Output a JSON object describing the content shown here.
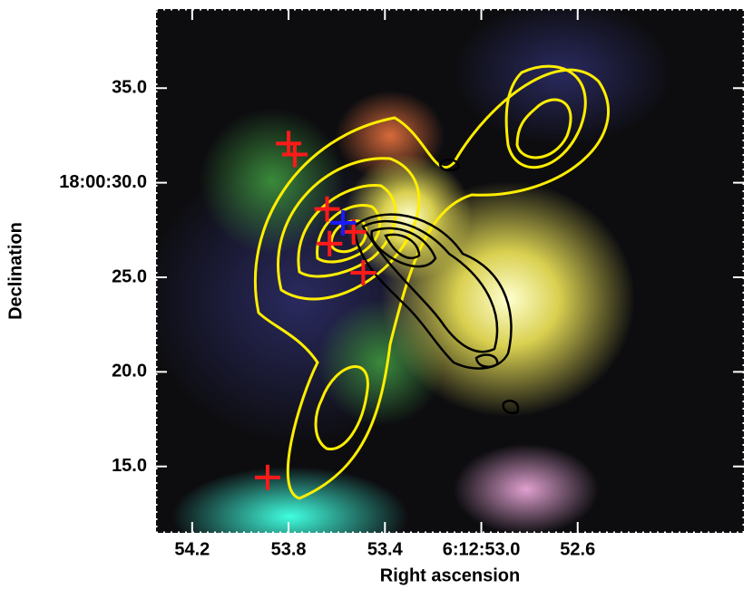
{
  "chart_data": {
    "type": "scatter",
    "xlabel": "Right ascension",
    "ylabel": "Declination",
    "xlim": [
      54.35,
      51.91
    ],
    "ylim": [
      11.49,
      39.18
    ],
    "xticks": [
      54.2,
      53.8,
      53.4,
      {
        "value": 53.0,
        "label": "6:12:53.0"
      },
      52.6
    ],
    "yticks": [
      {
        "value": 15,
        "label": "15.0"
      },
      {
        "value": 20,
        "label": "20.0"
      },
      {
        "value": 25,
        "label": "25.0"
      },
      {
        "value": 30,
        "label": "18:00:30.0"
      },
      {
        "value": 35,
        "label": "35.0"
      }
    ],
    "series": [
      {
        "color": "#ff1a1a",
        "x": [
          53.8,
          53.774,
          53.64,
          53.53,
          53.63,
          53.49,
          53.887
        ],
        "values": [
          32.07,
          31.49,
          28.61,
          27.4,
          26.78,
          25.24,
          14.42
        ]
      },
      {
        "color": "#1a1aff",
        "x": [
          53.574
        ],
        "values": [
          27.88
        ]
      }
    ]
  }
}
